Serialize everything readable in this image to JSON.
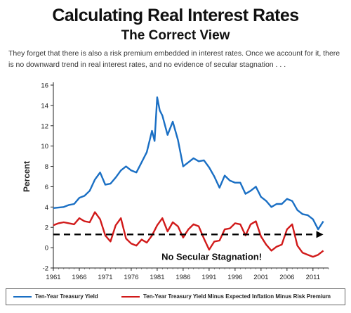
{
  "header": {
    "title": "Calculating Real Interest Rates",
    "subtitle": "The Correct View",
    "caption": "They forget that there is also a risk premium embedded in interest rates. Once we account for it, there is no downward trend in real interest rates, and no evidence of secular stagnation . . ."
  },
  "colors": {
    "treasury": "#1a6fc4",
    "real": "#d11a1a",
    "dashed": "#000000"
  },
  "chart_data": {
    "type": "line",
    "ylabel": "Percent",
    "xlabel": "",
    "xlim": [
      1961,
      2014
    ],
    "ylim": [
      -2,
      16
    ],
    "yticks": [
      -2,
      0,
      2,
      4,
      6,
      8,
      10,
      12,
      14,
      16
    ],
    "xticks": [
      1961,
      1966,
      1971,
      1976,
      1981,
      1986,
      1991,
      1996,
      2001,
      2006,
      2011
    ],
    "annotation": "No Secular Stagnation!",
    "trend_line": {
      "style": "dashed-arrow",
      "x": [
        1961,
        2013
      ],
      "y": [
        1.3,
        1.3
      ]
    },
    "legend": {
      "placement": "bottom",
      "entries": [
        "Ten-Year Treasury Yield",
        "Ten-Year Treasury Yield Minus Expected Inflation Minus Risk Premium"
      ]
    },
    "series": [
      {
        "name": "Ten-Year Treasury Yield",
        "color": "#1a6fc4",
        "x": [
          1961,
          1962,
          1963,
          1964,
          1965,
          1966,
          1967,
          1968,
          1969,
          1970,
          1971,
          1972,
          1973,
          1974,
          1975,
          1976,
          1977,
          1978,
          1979,
          1980,
          1980.5,
          1981,
          1981.5,
          1982,
          1983,
          1984,
          1985,
          1986,
          1987,
          1988,
          1989,
          1990,
          1991,
          1992,
          1993,
          1994,
          1995,
          1996,
          1997,
          1998,
          1999,
          2000,
          2001,
          2002,
          2003,
          2004,
          2005,
          2006,
          2007,
          2008,
          2009,
          2010,
          2011,
          2012,
          2013
        ],
        "y": [
          3.9,
          3.95,
          4.0,
          4.2,
          4.3,
          4.9,
          5.1,
          5.6,
          6.7,
          7.4,
          6.2,
          6.3,
          6.9,
          7.6,
          8.0,
          7.6,
          7.4,
          8.4,
          9.4,
          11.5,
          10.5,
          14.8,
          13.5,
          13.0,
          11.1,
          12.4,
          10.6,
          8.0,
          8.4,
          8.8,
          8.5,
          8.6,
          7.9,
          7.0,
          5.9,
          7.1,
          6.6,
          6.4,
          6.4,
          5.3,
          5.6,
          6.0,
          5.0,
          4.6,
          4.0,
          4.3,
          4.3,
          4.8,
          4.6,
          3.7,
          3.3,
          3.2,
          2.8,
          1.8,
          2.6
        ]
      },
      {
        "name": "Ten-Year Treasury Yield Minus Expected Inflation Minus Risk Premium",
        "color": "#d11a1a",
        "x": [
          1961,
          1962,
          1963,
          1964,
          1965,
          1966,
          1967,
          1968,
          1969,
          1970,
          1971,
          1972,
          1973,
          1974,
          1975,
          1976,
          1977,
          1978,
          1979,
          1980,
          1981,
          1982,
          1983,
          1984,
          1985,
          1986,
          1987,
          1988,
          1989,
          1990,
          1991,
          1992,
          1993,
          1994,
          1995,
          1996,
          1997,
          1998,
          1999,
          2000,
          2001,
          2002,
          2003,
          2004,
          2005,
          2006,
          2007,
          2008,
          2009,
          2010,
          2011,
          2012,
          2013
        ],
        "y": [
          2.2,
          2.4,
          2.5,
          2.4,
          2.3,
          2.9,
          2.6,
          2.5,
          3.5,
          2.8,
          1.2,
          0.6,
          2.2,
          2.9,
          0.9,
          0.4,
          0.2,
          0.8,
          0.5,
          1.2,
          2.2,
          2.9,
          1.6,
          2.5,
          2.1,
          1.0,
          1.8,
          2.3,
          2.1,
          0.9,
          -0.2,
          0.6,
          0.7,
          1.8,
          1.9,
          2.4,
          2.3,
          1.2,
          2.3,
          2.6,
          1.1,
          0.3,
          -0.3,
          0.1,
          0.3,
          1.8,
          2.3,
          0.2,
          -0.5,
          -0.7,
          -0.9,
          -0.7,
          -0.3
        ]
      }
    ]
  }
}
